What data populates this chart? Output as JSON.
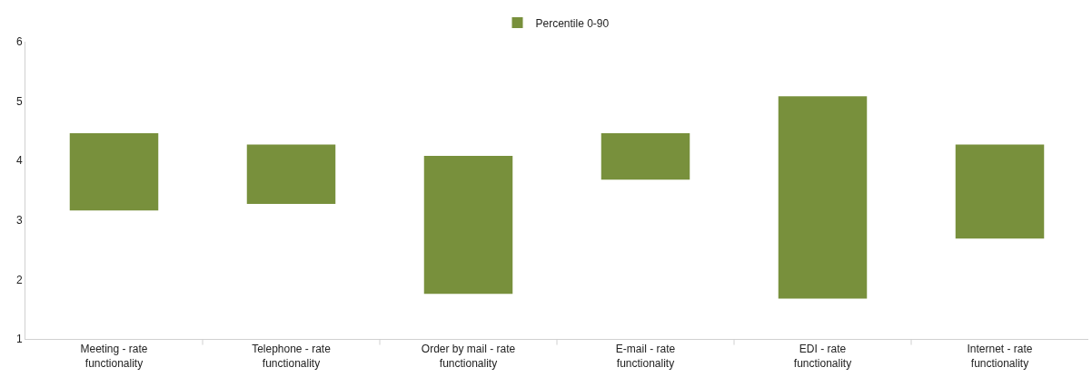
{
  "chart_data": {
    "type": "bar",
    "categories": [
      "Meeting - rate functionality",
      "Telephone - rate functionality",
      "Order by mail - rate functionality",
      "E-mail - rate functionality",
      "EDI - rate functionality",
      "Internet - rate functionality"
    ],
    "series": [
      {
        "name": "Percentile 0-90",
        "color": "#78903c",
        "values": [
          1.3,
          1.0,
          2.32,
          0.78,
          3.4,
          1.58
        ],
        "base": [
          3.16,
          3.27,
          1.76,
          3.68,
          1.68,
          2.69
        ]
      }
    ],
    "ylim": [
      1,
      6
    ],
    "yticks": [
      1,
      2,
      3,
      4,
      5,
      6
    ],
    "grid": false,
    "legend": "top"
  }
}
